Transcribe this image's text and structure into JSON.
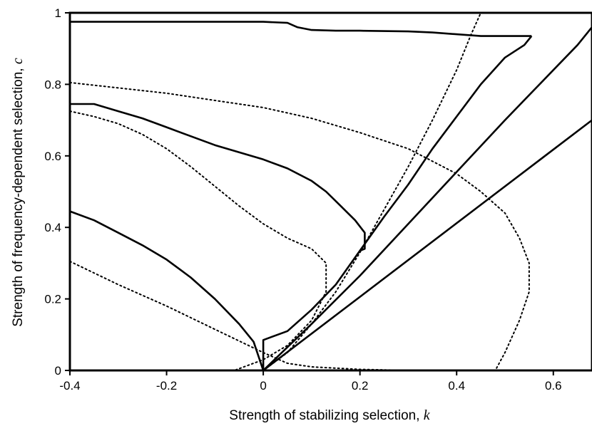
{
  "chart_data": {
    "type": "line",
    "xlabel": "Strength of stabilizing selection, ",
    "xlabel_var": "k",
    "ylabel": "Strength of frequency-dependent selection, ",
    "ylabel_var": "c",
    "xlim": [
      -0.4,
      0.68
    ],
    "ylim": [
      0,
      1
    ],
    "x_ticks": [
      -0.4,
      -0.2,
      0,
      0.2,
      0.4,
      0.6
    ],
    "x_tick_labels": [
      "-0.4",
      "-0.2",
      "0",
      "0.2",
      "0.4",
      "0.6"
    ],
    "y_ticks": [
      0,
      0.2,
      0.4,
      0.6,
      0.8,
      1
    ],
    "y_tick_labels": [
      "0",
      "0.2",
      "0.4",
      "0.6",
      "0.8",
      "1"
    ],
    "grid": false,
    "series": [
      {
        "style": "solid",
        "points": [
          [
            -0.4,
            0.975
          ],
          [
            -0.3,
            0.975
          ],
          [
            -0.2,
            0.975
          ],
          [
            -0.1,
            0.975
          ],
          [
            -0.05,
            0.975
          ],
          [
            0.0,
            0.975
          ],
          [
            0.05,
            0.972
          ],
          [
            0.07,
            0.96
          ],
          [
            0.1,
            0.952
          ],
          [
            0.15,
            0.95
          ],
          [
            0.2,
            0.95
          ],
          [
            0.3,
            0.948
          ],
          [
            0.35,
            0.945
          ],
          [
            0.4,
            0.94
          ],
          [
            0.45,
            0.935
          ],
          [
            0.5,
            0.935
          ],
          [
            0.55,
            0.935
          ],
          [
            0.555,
            0.935
          ]
        ]
      },
      {
        "style": "solid",
        "points": [
          [
            -0.4,
            0.745
          ],
          [
            -0.35,
            0.745
          ],
          [
            -0.3,
            0.725
          ],
          [
            -0.25,
            0.705
          ],
          [
            -0.2,
            0.68
          ],
          [
            -0.15,
            0.655
          ],
          [
            -0.1,
            0.63
          ],
          [
            -0.05,
            0.61
          ],
          [
            0.0,
            0.59
          ],
          [
            0.05,
            0.565
          ],
          [
            0.1,
            0.53
          ],
          [
            0.13,
            0.5
          ],
          [
            0.16,
            0.46
          ],
          [
            0.19,
            0.42
          ],
          [
            0.21,
            0.385
          ],
          [
            0.21,
            0.34
          ],
          [
            0.2,
            0.335
          ]
        ]
      },
      {
        "style": "solid",
        "points": [
          [
            -0.4,
            0.445
          ],
          [
            -0.35,
            0.42
          ],
          [
            -0.3,
            0.385
          ],
          [
            -0.25,
            0.35
          ],
          [
            -0.2,
            0.31
          ],
          [
            -0.15,
            0.26
          ],
          [
            -0.1,
            0.2
          ],
          [
            -0.05,
            0.13
          ],
          [
            -0.02,
            0.08
          ],
          [
            0.0,
            0.0
          ]
        ]
      },
      {
        "style": "solid",
        "points": [
          [
            0.0,
            0.0
          ],
          [
            0.0,
            0.085
          ],
          [
            0.05,
            0.11
          ],
          [
            0.1,
            0.17
          ],
          [
            0.15,
            0.24
          ],
          [
            0.2,
            0.335
          ],
          [
            0.25,
            0.43
          ],
          [
            0.3,
            0.52
          ],
          [
            0.35,
            0.62
          ],
          [
            0.4,
            0.71
          ],
          [
            0.45,
            0.8
          ],
          [
            0.5,
            0.875
          ],
          [
            0.54,
            0.91
          ],
          [
            0.555,
            0.935
          ]
        ]
      },
      {
        "style": "solid",
        "points": [
          [
            0.0,
            0.0
          ],
          [
            0.1,
            0.13
          ],
          [
            0.2,
            0.265
          ],
          [
            0.3,
            0.41
          ],
          [
            0.4,
            0.555
          ],
          [
            0.5,
            0.7
          ],
          [
            0.6,
            0.84
          ],
          [
            0.65,
            0.91
          ],
          [
            0.68,
            0.96
          ]
        ]
      },
      {
        "style": "solid",
        "points": [
          [
            0.0,
            0.0
          ],
          [
            0.68,
            0.7
          ]
        ]
      },
      {
        "style": "dotted",
        "points": [
          [
            -0.4,
            0.305
          ],
          [
            -0.3,
            0.24
          ],
          [
            -0.2,
            0.18
          ],
          [
            -0.1,
            0.115
          ],
          [
            0.0,
            0.05
          ],
          [
            0.05,
            0.02
          ],
          [
            0.1,
            0.01
          ],
          [
            0.2,
            0.003
          ],
          [
            0.3,
            0.0
          ],
          [
            0.4,
            0.0
          ]
        ]
      },
      {
        "style": "dotted",
        "points": [
          [
            -0.4,
            0.725
          ],
          [
            -0.35,
            0.71
          ],
          [
            -0.3,
            0.69
          ],
          [
            -0.25,
            0.66
          ],
          [
            -0.2,
            0.62
          ],
          [
            -0.15,
            0.57
          ],
          [
            -0.1,
            0.515
          ],
          [
            -0.05,
            0.46
          ],
          [
            0.0,
            0.41
          ],
          [
            0.05,
            0.37
          ],
          [
            0.1,
            0.34
          ],
          [
            0.13,
            0.3
          ],
          [
            0.13,
            0.22
          ],
          [
            0.1,
            0.14
          ],
          [
            0.05,
            0.07
          ],
          [
            0.0,
            0.03
          ],
          [
            -0.04,
            0.01
          ],
          [
            -0.06,
            0.0
          ]
        ]
      },
      {
        "style": "dotted",
        "points": [
          [
            -0.4,
            0.805
          ],
          [
            -0.3,
            0.79
          ],
          [
            -0.2,
            0.775
          ],
          [
            -0.1,
            0.755
          ],
          [
            0.0,
            0.735
          ],
          [
            0.1,
            0.705
          ],
          [
            0.2,
            0.665
          ],
          [
            0.3,
            0.62
          ],
          [
            0.4,
            0.55
          ],
          [
            0.45,
            0.5
          ],
          [
            0.5,
            0.44
          ],
          [
            0.53,
            0.37
          ],
          [
            0.55,
            0.3
          ],
          [
            0.55,
            0.22
          ],
          [
            0.53,
            0.14
          ],
          [
            0.5,
            0.05
          ],
          [
            0.48,
            0.0
          ]
        ]
      },
      {
        "style": "dotted",
        "points": [
          [
            0.0,
            0.0
          ],
          [
            0.05,
            0.05
          ],
          [
            0.1,
            0.13
          ],
          [
            0.15,
            0.22
          ],
          [
            0.2,
            0.33
          ],
          [
            0.25,
            0.45
          ],
          [
            0.3,
            0.57
          ],
          [
            0.35,
            0.7
          ],
          [
            0.4,
            0.84
          ],
          [
            0.43,
            0.94
          ],
          [
            0.45,
            1.0
          ]
        ]
      }
    ]
  }
}
